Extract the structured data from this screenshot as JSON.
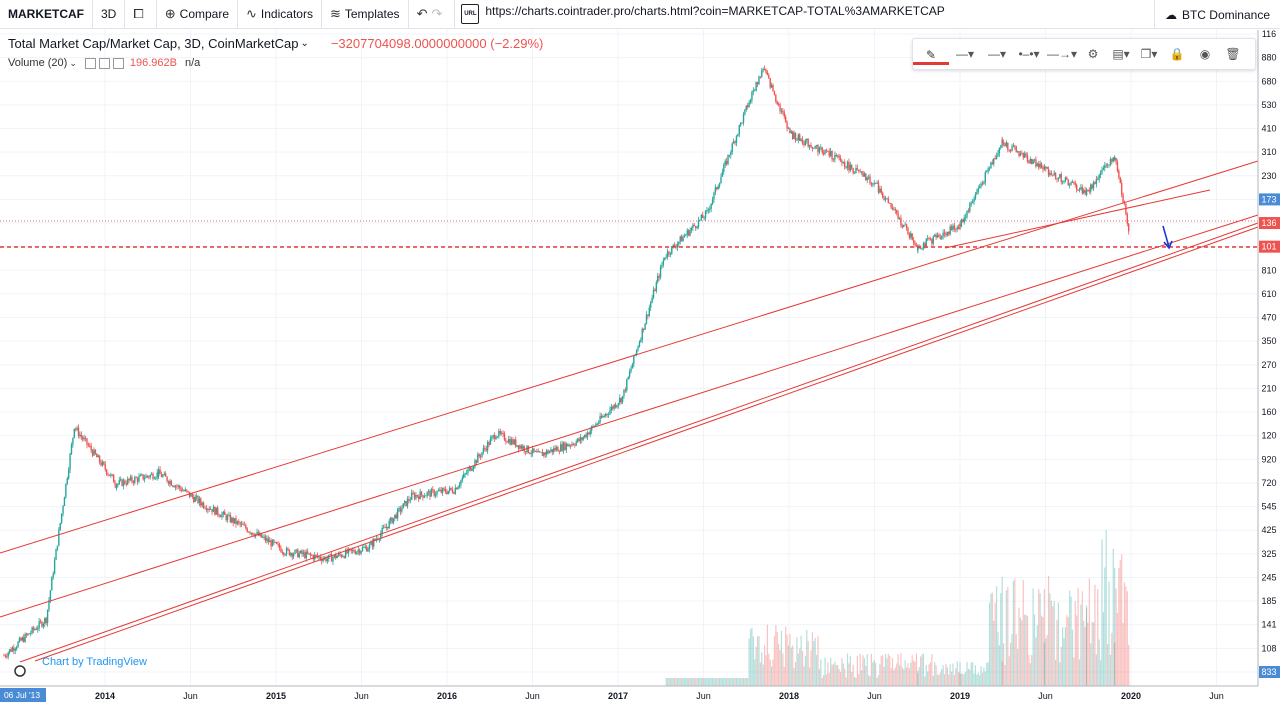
{
  "toolbar": {
    "symbol": "MARKETCAF",
    "interval": "3D",
    "compare": "Compare",
    "indicators": "Indicators",
    "templates": "Templates",
    "url_badge": "URL",
    "url": "https://charts.cointrader.pro/charts.html?coin=MARKETCAP-TOTAL%3AMARKETCAP",
    "btc_dominance": "BTC Dominance"
  },
  "legend": {
    "title": "Total Market Cap/Market Cap, 3D, CoinMarketCap",
    "change": "−3207704098.0000000000 (−2.29%)",
    "volume_label": "Volume (20)",
    "volume_value": "196.962B",
    "volume_na": "n/a"
  },
  "attribution": "Chart by TradingView",
  "colors": {
    "up": "#26a69a",
    "down": "#ef5350",
    "trendline": "#e53935",
    "arrow": "#1e3ad6",
    "axis_label_blue": "#4a8bd6"
  },
  "chart_data": {
    "type": "candlestick",
    "title": "Total Market Cap/Market Cap, 3D, CoinMarketCap",
    "y_scale": "log",
    "ylim": [
      1000000000.0,
      1160000000000.0
    ],
    "price_axis_labels": [
      "116",
      "880",
      "680",
      "530",
      "410",
      "310",
      "230",
      "173",
      "136",
      "101",
      "810",
      "610",
      "470",
      "350",
      "270",
      "210",
      "160",
      "120",
      "920",
      "720",
      "545",
      "425",
      "325",
      "245",
      "185",
      "141",
      "108",
      "833"
    ],
    "price_axis_highlighted": [
      {
        "label": "173",
        "color": "#4a8bd6"
      },
      {
        "label": "136",
        "color": "#ef5350"
      },
      {
        "label": "101",
        "color": "#ef5350"
      },
      {
        "label": "833",
        "color": "#4a8bd6"
      }
    ],
    "time_axis_labels": [
      "06 Jul '13",
      "2014",
      "Jun",
      "2015",
      "Jun",
      "2016",
      "Jun",
      "2017",
      "Jun",
      "2018",
      "Jun",
      "2019",
      "Jun",
      "2020",
      "Jun"
    ],
    "x": [
      "2013-07",
      "2013-10",
      "2013-12",
      "2014-03",
      "2014-06",
      "2014-09",
      "2014-12",
      "2015-03",
      "2015-06",
      "2015-09",
      "2015-12",
      "2016-03",
      "2016-06",
      "2016-09",
      "2016-12",
      "2017-03",
      "2017-06",
      "2017-09",
      "2017-12",
      "2018-01",
      "2018-03",
      "2018-06",
      "2018-09",
      "2018-12",
      "2019-03",
      "2019-06",
      "2019-09",
      "2019-12",
      "2020-02",
      "2020-03"
    ],
    "close_usd": [
      1200000000.0,
      1800000000.0,
      15000000000.0,
      8000000000.0,
      9000000000.0,
      6500000000.0,
      5000000000.0,
      3800000000.0,
      3500000000.0,
      4000000000.0,
      7000000000.0,
      7500000000.0,
      14000000000.0,
      11000000000.0,
      13000000000.0,
      21000000000.0,
      100000000000.0,
      160000000000.0,
      550000000000.0,
      800000000000.0,
      380000000000.0,
      300000000000.0,
      220000000000.0,
      110000000000.0,
      140000000000.0,
      350000000000.0,
      260000000000.0,
      200000000000.0,
      300000000000.0,
      135000000000.0
    ],
    "horizontal_levels_usd": [
      136000000000.0,
      101000000000.0
    ],
    "volume_note": "volume histogram at bottom, rising sharply after 2017"
  }
}
